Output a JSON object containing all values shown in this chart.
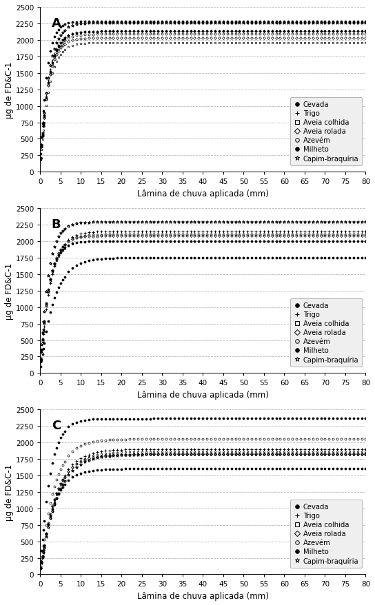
{
  "panels": [
    {
      "label": "A",
      "ylabel": "µg de FD&C-1",
      "xlabel": "Lâmina de chuva aplicada (mm)",
      "xlim": [
        0,
        80
      ],
      "ylim": [
        0,
        2500
      ],
      "yticks": [
        0,
        250,
        500,
        750,
        1000,
        1250,
        1500,
        1750,
        2000,
        2250,
        2500
      ],
      "xticks": [
        0,
        5,
        10,
        15,
        20,
        25,
        30,
        35,
        40,
        45,
        50,
        55,
        60,
        65,
        70,
        75,
        80
      ],
      "series": [
        {
          "name": "Cevada",
          "marker": "o",
          "filled": true,
          "A": 2130,
          "b": 0,
          "c": 0.5,
          "ms": 2.2
        },
        {
          "name": "Trigo",
          "marker": "+",
          "filled": false,
          "A": 2130,
          "b": 0,
          "c": 0.52,
          "ms": 3.5
        },
        {
          "name": "Aveia colhida",
          "marker": "s",
          "filled": false,
          "A": 1960,
          "b": 0,
          "c": 0.48,
          "ms": 2.0
        },
        {
          "name": "Aveia rolada",
          "marker": "D",
          "filled": false,
          "A": 2030,
          "b": 0,
          "c": 0.52,
          "ms": 2.0
        },
        {
          "name": "Azevém",
          "marker": "o",
          "filled": false,
          "A": 2090,
          "b": 0,
          "c": 0.5,
          "ms": 2.2
        },
        {
          "name": "Milheto",
          "marker": "o",
          "filled": true,
          "A": 2280,
          "b": 0,
          "c": 0.65,
          "ms": 2.2
        },
        {
          "name": "Capim-braquíria",
          "marker": "*",
          "filled": false,
          "A": 2260,
          "b": 0,
          "c": 0.5,
          "ms": 3.0
        }
      ]
    },
    {
      "label": "B",
      "ylabel": "µg de FD&C-1",
      "xlabel": "Lâmina de chuva aplicada (mm)",
      "xlim": [
        0,
        80
      ],
      "ylim": [
        0,
        2500
      ],
      "yticks": [
        0,
        250,
        500,
        750,
        1000,
        1250,
        1500,
        1750,
        2000,
        2250,
        2500
      ],
      "xticks": [
        0,
        5,
        10,
        15,
        20,
        25,
        30,
        35,
        40,
        45,
        50,
        55,
        60,
        65,
        70,
        75,
        80
      ],
      "series": [
        {
          "name": "Cevada",
          "marker": "o",
          "filled": true,
          "A": 2000,
          "b": 0,
          "c": 0.5,
          "ms": 2.2
        },
        {
          "name": "Trigo",
          "marker": "+",
          "filled": false,
          "A": 2150,
          "b": 0,
          "c": 0.4,
          "ms": 3.5
        },
        {
          "name": "Aveia colhida",
          "marker": "s",
          "filled": false,
          "A": 2000,
          "b": 0,
          "c": 0.48,
          "ms": 2.0
        },
        {
          "name": "Aveia rolada",
          "marker": "D",
          "filled": false,
          "A": 2080,
          "b": 0,
          "c": 0.46,
          "ms": 2.0
        },
        {
          "name": "Azevém",
          "marker": "o",
          "filled": false,
          "A": 2100,
          "b": 0,
          "c": 0.44,
          "ms": 2.2
        },
        {
          "name": "Milheto",
          "marker": "o",
          "filled": true,
          "A": 1750,
          "b": 0,
          "c": 0.3,
          "ms": 2.2
        },
        {
          "name": "Capim-braquíria",
          "marker": "*",
          "filled": false,
          "A": 2290,
          "b": 0,
          "c": 0.52,
          "ms": 3.0
        }
      ]
    },
    {
      "label": "C",
      "ylabel": "µg de FD&C-1",
      "xlabel": "Lâmina de chuva aplicada (mm)",
      "xlim": [
        0,
        80
      ],
      "ylim": [
        0,
        2500
      ],
      "yticks": [
        0,
        250,
        500,
        750,
        1000,
        1250,
        1500,
        1750,
        2000,
        2250,
        2500
      ],
      "xticks": [
        0,
        5,
        10,
        15,
        20,
        25,
        30,
        35,
        40,
        45,
        50,
        55,
        60,
        65,
        70,
        75,
        80
      ],
      "series": [
        {
          "name": "Cevada",
          "marker": "o",
          "filled": true,
          "A": 1600,
          "b": 0,
          "c": 0.32,
          "ms": 2.2
        },
        {
          "name": "Trigo",
          "marker": "+",
          "filled": false,
          "A": 1900,
          "b": 0,
          "c": 0.26,
          "ms": 3.5
        },
        {
          "name": "Aveia colhida",
          "marker": "s",
          "filled": false,
          "A": 1860,
          "b": 0,
          "c": 0.26,
          "ms": 2.0
        },
        {
          "name": "Aveia rolada",
          "marker": "D",
          "filled": false,
          "A": 1820,
          "b": 0,
          "c": 0.28,
          "ms": 2.0
        },
        {
          "name": "Azevém",
          "marker": "o",
          "filled": false,
          "A": 2050,
          "b": 0,
          "c": 0.3,
          "ms": 2.2
        },
        {
          "name": "Milheto",
          "marker": "o",
          "filled": true,
          "A": 2360,
          "b": 0,
          "c": 0.42,
          "ms": 2.2
        },
        {
          "name": "Capim-braquíria",
          "marker": "*",
          "filled": false,
          "A": 1820,
          "b": 0,
          "c": 0.25,
          "ms": 3.0
        }
      ]
    }
  ],
  "legend_entries": [
    {
      "name": "Cevada",
      "marker": "o",
      "filled": true
    },
    {
      "name": "Trigo",
      "marker": "+",
      "filled": false
    },
    {
      "name": "Aveia colhida",
      "marker": "s",
      "filled": false
    },
    {
      "name": "Aveia rolada",
      "marker": "D",
      "filled": false
    },
    {
      "name": "Azevém",
      "marker": "o",
      "filled": false
    },
    {
      "name": "Milheto",
      "marker": "o",
      "filled": true
    },
    {
      "name": "Capim-braquíria",
      "marker": "*",
      "filled": false
    }
  ],
  "bg_color": "#ffffff",
  "marker_color": "#000000",
  "grid_color": "#888888",
  "grid_style": "--",
  "grid_alpha": 0.6
}
